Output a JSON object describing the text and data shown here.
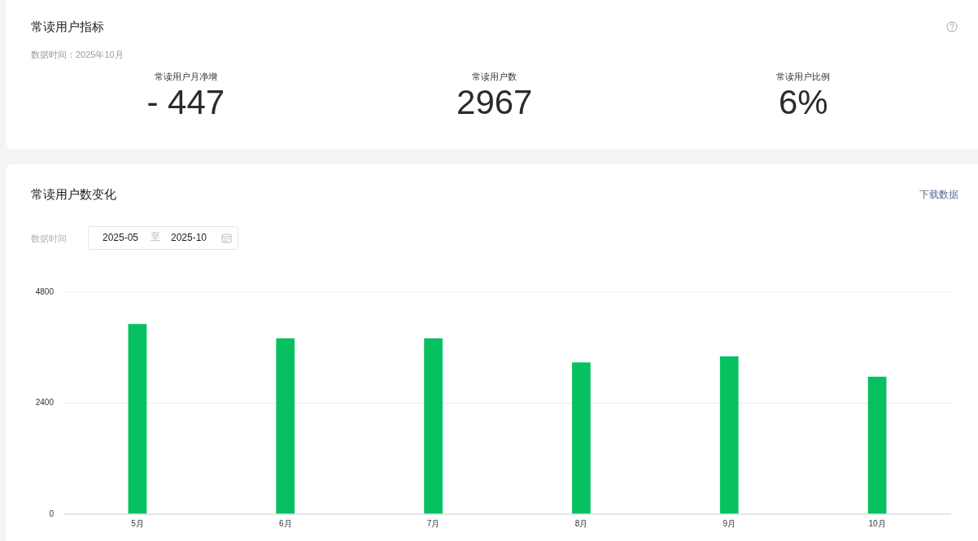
{
  "chart_data": [
    {
      "type": "other",
      "title": "常读用户指标",
      "subtitle": "数据时间：2025年10月",
      "annotations": [
        "常读用户月净增",
        "- 447",
        "常读用户数",
        "2967",
        "常读用户比例",
        "6%"
      ]
    },
    {
      "type": "bar",
      "title": "常读用户数变化",
      "annotations": [
        "下载数据",
        "数据时间",
        "2025-05",
        "至",
        "2025-10"
      ],
      "categories": [
        "5月",
        "6月",
        "7月",
        "8月",
        "9月",
        "10月"
      ],
      "values": [
        4110,
        3800,
        3800,
        3280,
        3410,
        2970
      ],
      "color": "#07c160",
      "ylim": [
        0,
        4800
      ],
      "yticks": [
        0,
        2400,
        4800
      ],
      "grid": "y"
    }
  ]
}
